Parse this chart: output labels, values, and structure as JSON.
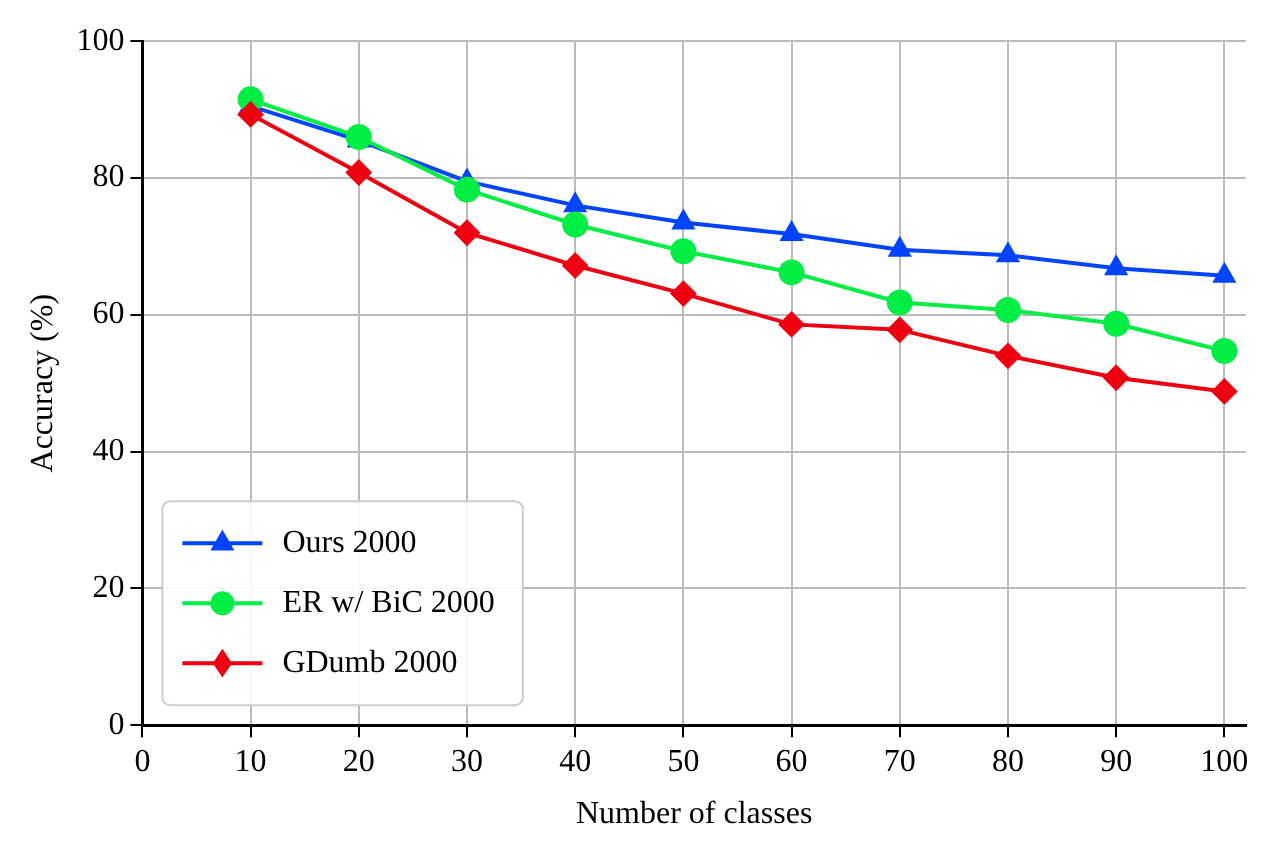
{
  "chart_data": {
    "type": "line",
    "xlabel": "Number of classes",
    "ylabel": "Accuracy (%)",
    "x": [
      10,
      20,
      30,
      40,
      50,
      60,
      70,
      80,
      90,
      100
    ],
    "series": [
      {
        "name": "Ours 2000",
        "color": "#0044ff",
        "marker": "triangle",
        "values": [
          90.5,
          85.5,
          79.5,
          76.0,
          73.5,
          71.8,
          69.5,
          68.7,
          66.8,
          65.7
        ]
      },
      {
        "name": "ER w/ BiC 2000",
        "color": "#00ee44",
        "marker": "circle",
        "values": [
          91.5,
          86.0,
          78.3,
          73.2,
          69.3,
          66.2,
          61.8,
          60.7,
          58.7,
          54.7
        ]
      },
      {
        "name": "GDumb 2000",
        "color": "#ee0011",
        "marker": "diamond",
        "values": [
          89.3,
          80.8,
          72.0,
          67.2,
          63.1,
          58.6,
          57.8,
          54.0,
          50.8,
          48.8
        ]
      }
    ],
    "xlim": [
      0,
      102
    ],
    "xticks": [
      0,
      10,
      20,
      30,
      40,
      50,
      60,
      70,
      80,
      90,
      100
    ],
    "ylim": [
      0,
      100
    ],
    "yticks": [
      0,
      20,
      40,
      60,
      80,
      100
    ],
    "grid": true,
    "legend": "bottom left",
    "line_style": "solid"
  }
}
